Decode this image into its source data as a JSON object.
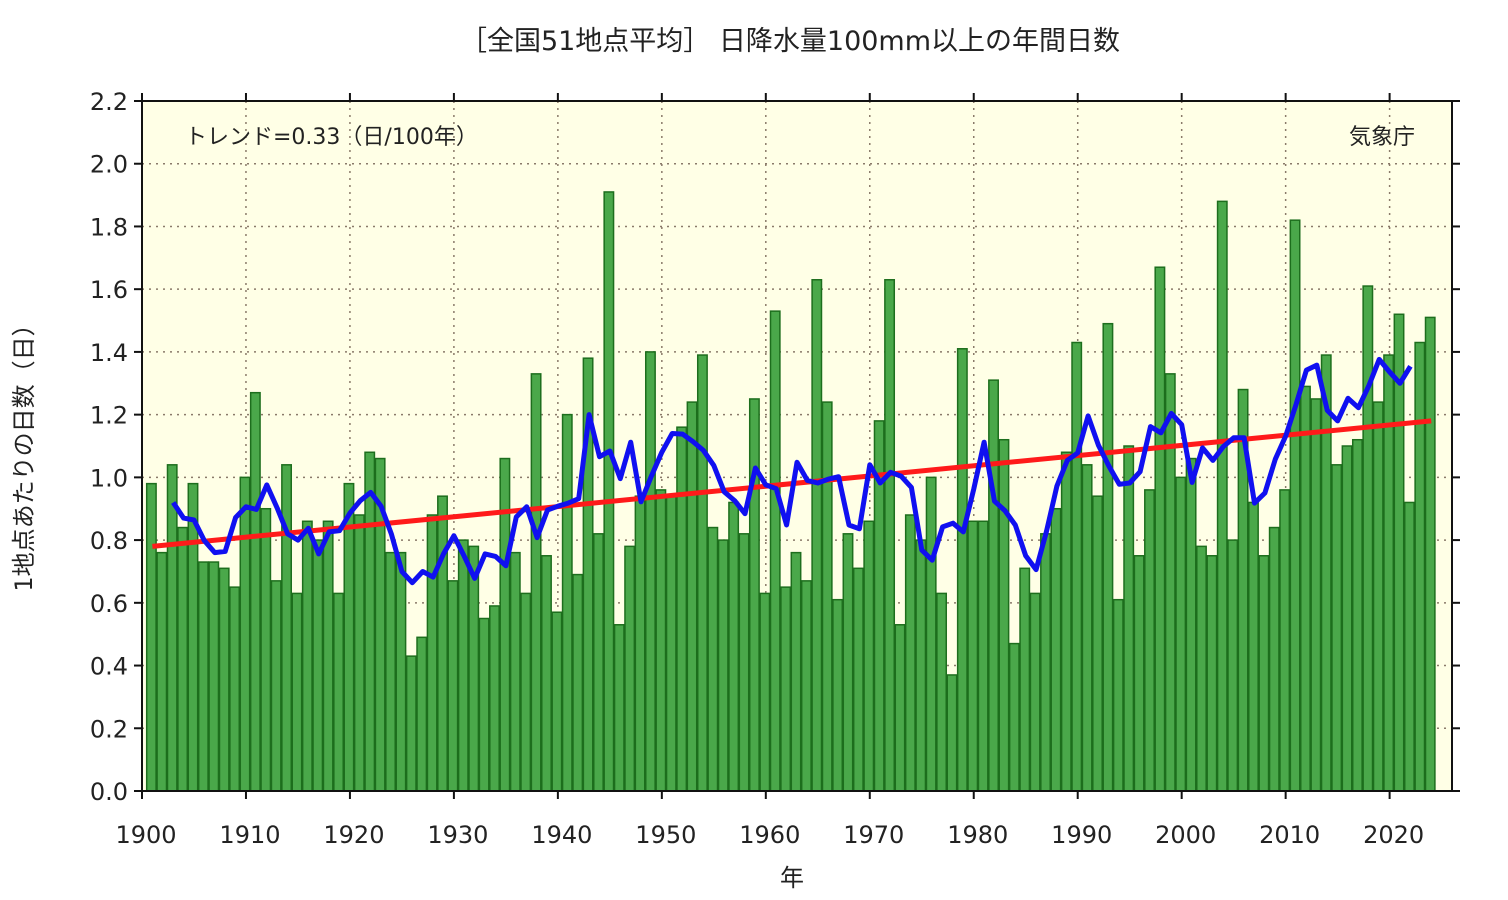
{
  "chart_data": {
    "type": "bar",
    "title": "［全国51地点平均］ 日降水量100mm以上の年間日数",
    "xlabel": "年",
    "ylabel": "1地点あたりの日数（日）",
    "annotation_trend": "トレンド=0.33（日/100年）",
    "annotation_source": "気象庁",
    "xlim": [
      1900,
      2026
    ],
    "ylim": [
      0.0,
      2.2
    ],
    "x_ticks": [
      "1900",
      "1910",
      "1920",
      "1930",
      "1940",
      "1950",
      "1960",
      "1970",
      "1980",
      "1990",
      "2000",
      "2010",
      "2020"
    ],
    "y_ticks": [
      "0.0",
      "0.2",
      "0.4",
      "0.6",
      "0.8",
      "1.0",
      "1.2",
      "1.4",
      "1.6",
      "1.8",
      "2.0",
      "2.2"
    ],
    "grid": true,
    "start_year": 1901,
    "values": [
      0.98,
      0.76,
      1.04,
      0.84,
      0.98,
      0.73,
      0.73,
      0.71,
      0.65,
      1.0,
      1.27,
      0.9,
      0.67,
      1.04,
      0.63,
      0.86,
      0.8,
      0.86,
      0.63,
      0.98,
      0.88,
      1.08,
      1.06,
      0.76,
      0.76,
      0.43,
      0.49,
      0.88,
      0.94,
      0.67,
      0.8,
      0.78,
      0.55,
      0.59,
      1.06,
      0.76,
      0.63,
      1.33,
      0.75,
      0.57,
      1.2,
      0.69,
      1.38,
      0.82,
      1.91,
      0.53,
      0.78,
      0.94,
      1.4,
      0.96,
      0.94,
      1.16,
      1.24,
      1.39,
      0.84,
      0.8,
      0.92,
      0.82,
      1.25,
      0.63,
      1.53,
      0.65,
      0.76,
      0.67,
      1.63,
      1.24,
      0.61,
      0.82,
      0.71,
      0.86,
      1.18,
      1.63,
      0.53,
      0.88,
      0.8,
      1.0,
      0.63,
      0.37,
      1.41,
      0.86,
      0.86,
      1.31,
      1.12,
      0.47,
      0.71,
      0.63,
      0.82,
      0.9,
      1.08,
      1.43,
      1.04,
      0.94,
      1.49,
      0.61,
      1.1,
      0.75,
      0.96,
      1.67,
      1.33,
      1.0,
      1.06,
      0.78,
      0.75,
      1.88,
      0.8,
      1.28,
      0.92,
      0.75,
      0.84,
      0.96,
      1.82,
      1.29,
      1.25,
      1.39,
      1.04,
      1.1,
      1.12,
      1.61,
      1.24,
      1.39,
      1.52,
      0.92,
      1.43,
      1.51
    ],
    "moving_average": {
      "window": 5,
      "color": "#1010f0"
    },
    "trend_line": {
      "x": [
        1901,
        2024
      ],
      "y": [
        0.78,
        1.18
      ],
      "color": "#ff1a1a"
    },
    "colors": {
      "bar_fill": "#4aa84a",
      "bar_edge": "#1d6e1d",
      "background": "#ffffe6"
    }
  }
}
